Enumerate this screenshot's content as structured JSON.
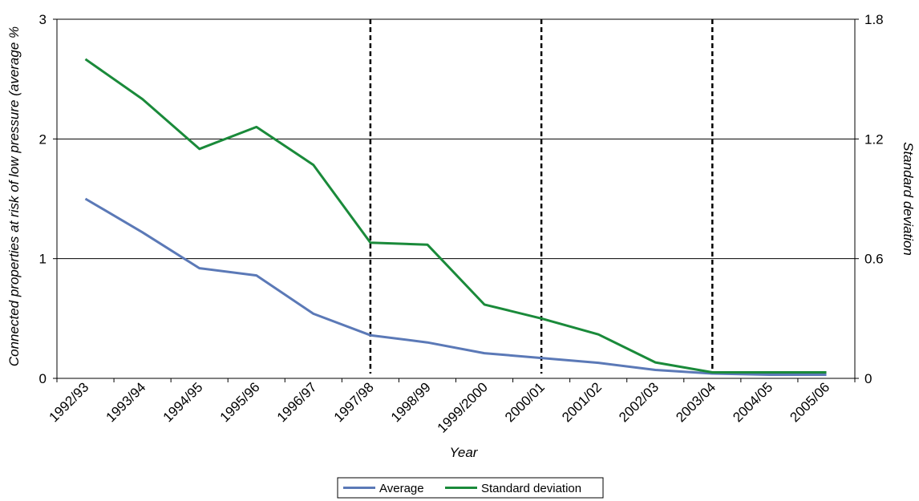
{
  "chart_data": {
    "type": "line",
    "categories": [
      "1992/93",
      "1993/94",
      "1994/95",
      "1995/96",
      "1996/97",
      "1997/98",
      "1998/99",
      "1999/2000",
      "2000/01",
      "2001/02",
      "2002/03",
      "2003/04",
      "2004/05",
      "2005/06"
    ],
    "series": [
      {
        "name": "Average",
        "axis": "left",
        "color": "#5B79B7",
        "values": [
          1.5,
          1.22,
          0.92,
          0.86,
          0.54,
          0.36,
          0.3,
          0.21,
          0.17,
          0.13,
          0.07,
          0.04,
          0.03,
          0.03
        ]
      },
      {
        "name": "Standard deviation",
        "axis": "right",
        "color": "#1A8A3A",
        "values": [
          1.6,
          1.4,
          1.15,
          1.26,
          1.07,
          0.68,
          0.67,
          0.37,
          0.3,
          0.22,
          0.08,
          0.03,
          0.03,
          0.03
        ]
      }
    ],
    "xlabel": "Year",
    "ylabel": "Connected properties at risk of low pressure (average  %",
    "ylabel_right": "Standard deviation",
    "ylim": [
      0,
      3
    ],
    "ylim_right": [
      0,
      1.8
    ],
    "yticks": [
      "0",
      "1",
      "2",
      "3"
    ],
    "yticks_right": [
      "0",
      "0.6",
      "1.2",
      "1.8"
    ],
    "grid": "horizontal",
    "vertical_markers": [
      "1997/98",
      "2000/01",
      "2003/04"
    ],
    "legend": {
      "position": "bottom",
      "entries": [
        "Average",
        "Standard deviation"
      ]
    }
  }
}
